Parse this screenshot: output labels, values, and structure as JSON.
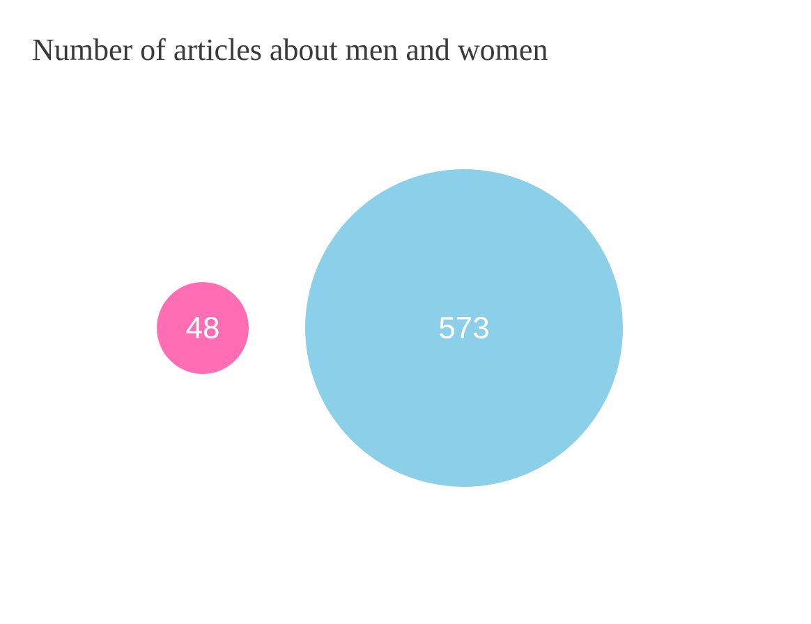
{
  "title": "Number of articles about men and women",
  "chart_data": {
    "type": "bubble",
    "title": "Number of articles about men and women",
    "series": [
      {
        "value": 48,
        "color": "#ff6eb4"
      },
      {
        "value": 573,
        "color": "#8ccfe9"
      }
    ]
  }
}
